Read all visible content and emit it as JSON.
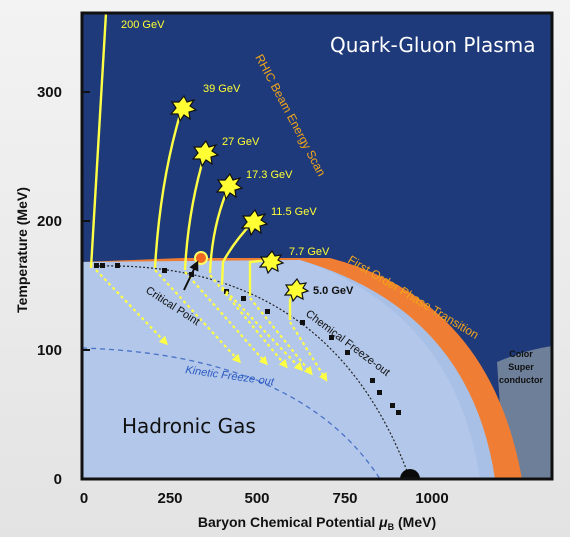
{
  "regions": {
    "qgp": "Quark-Gluon Plasma",
    "hadronic": "Hadronic Gas",
    "color_super_1": "Color",
    "color_super_2": "Super",
    "color_super_3": "conductor"
  },
  "labels": {
    "rhic_scan": "RHIC Beam Energy Scan",
    "first_order": "First Order Phase Transition",
    "chemical_freezeout": "Chemical Freeze-out",
    "kinetic_freezeout": "Kinetic Freeze-out",
    "critical_point": "Critical Point"
  },
  "energies": [
    "200 GeV",
    "39 GeV",
    "27 GeV",
    "17.3 GeV",
    "11.5 GeV",
    "7.7 GeV",
    "5.0 GeV"
  ],
  "axes": {
    "x_title": "Baryon Chemical Potential ",
    "x_symbol": "μ",
    "x_sub": "B",
    "x_unit": " (MeV)",
    "y_title": "Temperature (MeV)",
    "x_ticks": [
      "0",
      "250",
      "500",
      "750",
      "1000"
    ],
    "y_ticks": [
      "0",
      "100",
      "200",
      "300"
    ]
  },
  "colors": {
    "qgp": "#1f3a7a",
    "hadronic": "#a9c0e6",
    "transition": "#ef7d33",
    "trajectory": "#ffff44",
    "critical_point": "#ee6622"
  }
}
